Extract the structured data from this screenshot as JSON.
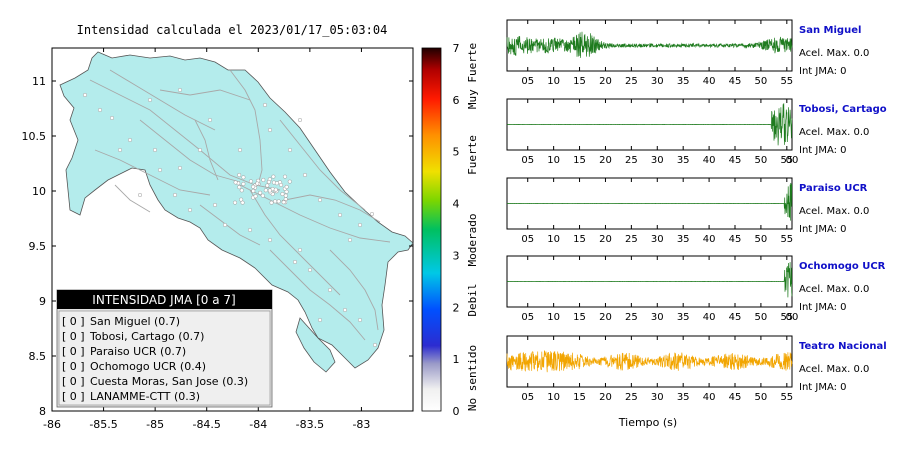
{
  "map": {
    "title": "Intensidad calculada el 2023/01/17_05:03:04",
    "x_ticks": [
      "-86",
      "-85.5",
      "-85",
      "-84.5",
      "-84",
      "-83.5",
      "-83"
    ],
    "y_ticks": [
      "11",
      "10.5",
      "10",
      "9.5",
      "9",
      "8.5",
      "8"
    ],
    "xlim": [
      -86,
      -82.5
    ],
    "ylim": [
      8,
      11.3
    ],
    "land_color": "#b4ecec",
    "road_color": "#a8a8a8"
  },
  "legend": {
    "header": "INTENSIDAD JMA [0 a 7]",
    "entries": [
      {
        "level": "[ 0 ]",
        "name": "San Miguel (0.7)"
      },
      {
        "level": "[ 0 ]",
        "name": "Tobosi, Cartago (0.7)"
      },
      {
        "level": "[ 0 ]",
        "name": "Paraiso UCR (0.7)"
      },
      {
        "level": "[ 0 ]",
        "name": "Ochomogo UCR (0.4)"
      },
      {
        "level": "[ 0 ]",
        "name": "Cuesta Moras, San Jose (0.3)"
      },
      {
        "level": "[ 0 ]",
        "name": "LANAMME-CTT (0.3)"
      }
    ]
  },
  "colorbar": {
    "ticks": [
      "7",
      "6",
      "5",
      "4",
      "3",
      "2",
      "1",
      "0"
    ],
    "labels": [
      "Muy Fuerte",
      "Fuerte",
      "Moderado",
      "Debil",
      "No sentido"
    ]
  },
  "waveforms": {
    "xlabel": "Tiempo (s)",
    "full_ticks": [
      "05",
      "10",
      "15",
      "20",
      "25",
      "30",
      "35",
      "40",
      "45",
      "50",
      "55"
    ],
    "ticks_00": [
      "05",
      "10",
      "15",
      "20",
      "25",
      "30",
      "35",
      "40",
      "45",
      "50",
      "55",
      "00"
    ],
    "stations": [
      {
        "name": "San Miguel",
        "acel": "Acel. Max. 0.0",
        "int": "Int JMA: 0",
        "color": "#1e7b1e",
        "ticks": "full"
      },
      {
        "name": "Tobosi, Cartago",
        "acel": "Acel. Max. 0.0",
        "int": "Int JMA: 0",
        "color": "#1e7b1e",
        "ticks": "t00"
      },
      {
        "name": "Paraiso UCR",
        "acel": "Acel. Max. 0.0",
        "int": "Int JMA: 0",
        "color": "#1e7b1e",
        "ticks": "full"
      },
      {
        "name": "Ochomogo UCR",
        "acel": "Acel. Max. 0.0",
        "int": "Int JMA: 0",
        "color": "#1e7b1e",
        "ticks": "t00"
      },
      {
        "name": "Teatro Nacional",
        "acel": "Acel. Max. 0.0",
        "int": "Int JMA: 0",
        "color": "#f2a500",
        "ticks": "full"
      }
    ]
  },
  "chart_data": {
    "type": "line",
    "title": "Intensidad calculada el 2023/01/17_05:03:04",
    "xlabel": "Tiempo (s)",
    "xlim": [
      1,
      56
    ],
    "series": [
      {
        "name": "San Miguel",
        "values": []
      },
      {
        "name": "Tobosi, Cartago",
        "values": []
      },
      {
        "name": "Paraiso UCR",
        "values": []
      },
      {
        "name": "Ochomogo UCR",
        "values": []
      },
      {
        "name": "Teatro Nacional",
        "values": []
      }
    ]
  }
}
